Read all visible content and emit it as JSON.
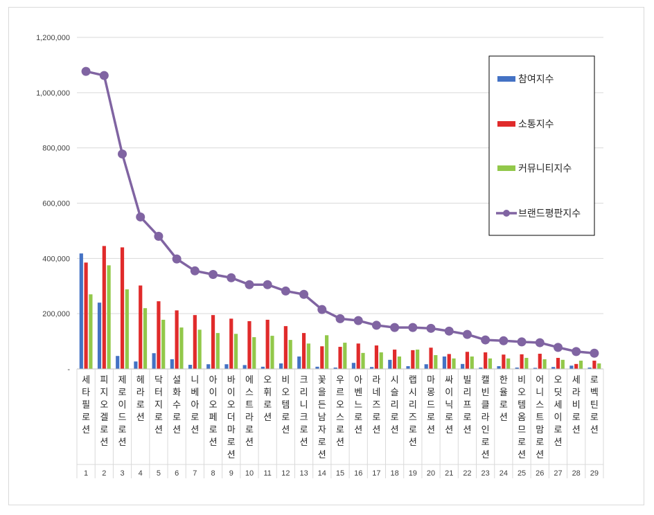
{
  "chart_data": {
    "type": "bar",
    "title": "",
    "xlabel": "",
    "ylabel": "",
    "ylim": [
      0,
      1200000
    ],
    "yticks": [
      0,
      200000,
      400000,
      600000,
      800000,
      1000000,
      1200000
    ],
    "ytick_labels": [
      "-",
      "200,000",
      "400,000",
      "600,000",
      "800,000",
      "1,000,000",
      "1,200,000"
    ],
    "grid": "horizontal",
    "legend_position": "right",
    "categories": [
      "세타필로션",
      "피지오겔로션",
      "제로이드로션",
      "헤라로션",
      "닥터지로션",
      "설화수로션",
      "니베아로션",
      "아이오페로션",
      "바이오더마로션",
      "에스트라로션",
      "오휘로션",
      "비오템로션",
      "크리니크로션",
      "꽃을든남자로션",
      "우르오스로션",
      "아벤느로션",
      "라네즈로션",
      "시슬리로션",
      "랩시리즈로션",
      "마몽드로션",
      "싸이닉로션",
      "빌리프로션",
      "캘빈클라인로션",
      "한율로션",
      "비오템옴므로션",
      "어니스트맘로션",
      "오딧세이로션",
      "세라비로션",
      "로벡틴로션"
    ],
    "ranks": [
      "1",
      "2",
      "3",
      "4",
      "5",
      "6",
      "7",
      "8",
      "9",
      "10",
      "11",
      "12",
      "13",
      "14",
      "15",
      "16",
      "17",
      "18",
      "19",
      "20",
      "21",
      "22",
      "23",
      "24",
      "25",
      "26",
      "27",
      "28",
      "29"
    ],
    "series": [
      {
        "name": "참여지수",
        "kind": "bar",
        "color": "#4472c4",
        "values": [
          418000,
          240000,
          47000,
          27000,
          57000,
          35000,
          15000,
          17000,
          17000,
          14000,
          8000,
          20000,
          45000,
          8000,
          5000,
          22000,
          7000,
          33000,
          10000,
          17000,
          45000,
          18000,
          5000,
          10000,
          5000,
          4000,
          7000,
          12000,
          5000
        ]
      },
      {
        "name": "소통지수",
        "kind": "bar",
        "color": "#e02b2b",
        "values": [
          385000,
          445000,
          440000,
          302000,
          245000,
          212000,
          195000,
          195000,
          182000,
          173000,
          178000,
          155000,
          130000,
          82000,
          80000,
          92000,
          85000,
          70000,
          68000,
          77000,
          54000,
          62000,
          60000,
          52000,
          53000,
          55000,
          40000,
          18000,
          30000
        ]
      },
      {
        "name": "커뮤니티지수",
        "kind": "bar",
        "color": "#92c84a",
        "values": [
          270000,
          375000,
          288000,
          220000,
          178000,
          150000,
          142000,
          130000,
          127000,
          115000,
          120000,
          105000,
          92000,
          122000,
          95000,
          58000,
          60000,
          45000,
          70000,
          50000,
          38000,
          45000,
          38000,
          38000,
          40000,
          35000,
          33000,
          30000,
          20000
        ]
      },
      {
        "name": "브랜드평판지수",
        "kind": "line",
        "color": "#8064a2",
        "values": [
          1077000,
          1062000,
          778000,
          550000,
          480000,
          398000,
          355000,
          342000,
          330000,
          305000,
          305000,
          282000,
          270000,
          215000,
          182000,
          175000,
          158000,
          150000,
          150000,
          147000,
          137000,
          125000,
          105000,
          102000,
          98000,
          95000,
          78000,
          63000,
          57000
        ]
      }
    ]
  }
}
